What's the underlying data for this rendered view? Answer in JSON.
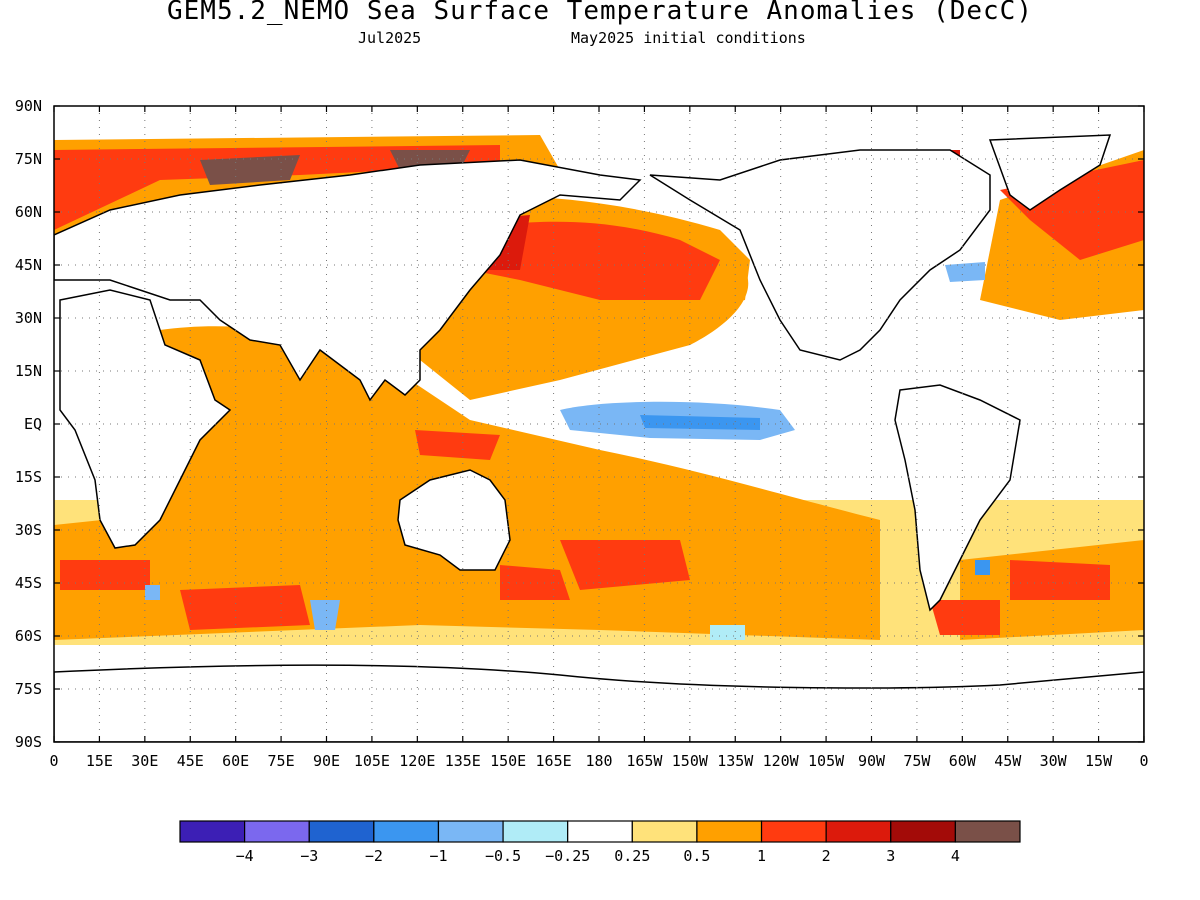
{
  "title": "GEM5.2_NEMO Sea Surface Temperature Anomalies (DecC)",
  "subtitle_left": "Jul2025",
  "subtitle_right": "May2025 initial conditions",
  "lat_labels": [
    "90N",
    "75N",
    "60N",
    "45N",
    "30N",
    "15N",
    "EQ",
    "15S",
    "30S",
    "45S",
    "60S",
    "75S",
    "90S"
  ],
  "lon_labels": [
    "0",
    "15E",
    "30E",
    "45E",
    "60E",
    "75E",
    "90E",
    "105E",
    "120E",
    "135E",
    "150E",
    "165E",
    "180",
    "165W",
    "150W",
    "135W",
    "120W",
    "105W",
    "90W",
    "75W",
    "60W",
    "45W",
    "30W",
    "15W",
    "0"
  ],
  "colorbar": {
    "colors": [
      "#3c1fb5",
      "#7b68ee",
      "#1f63d0",
      "#3b96f0",
      "#7ab7f5",
      "#b0ecf7",
      "#ffffff",
      "#ffe27a",
      "#ffa000",
      "#ff3b10",
      "#dc1a0c",
      "#a30b08",
      "#7a5048"
    ],
    "labels": [
      "−4",
      "−3",
      "−2",
      "−1",
      "−0.5",
      "−0.25",
      "0.25",
      "0.5",
      "1",
      "2",
      "3",
      "4"
    ]
  }
}
